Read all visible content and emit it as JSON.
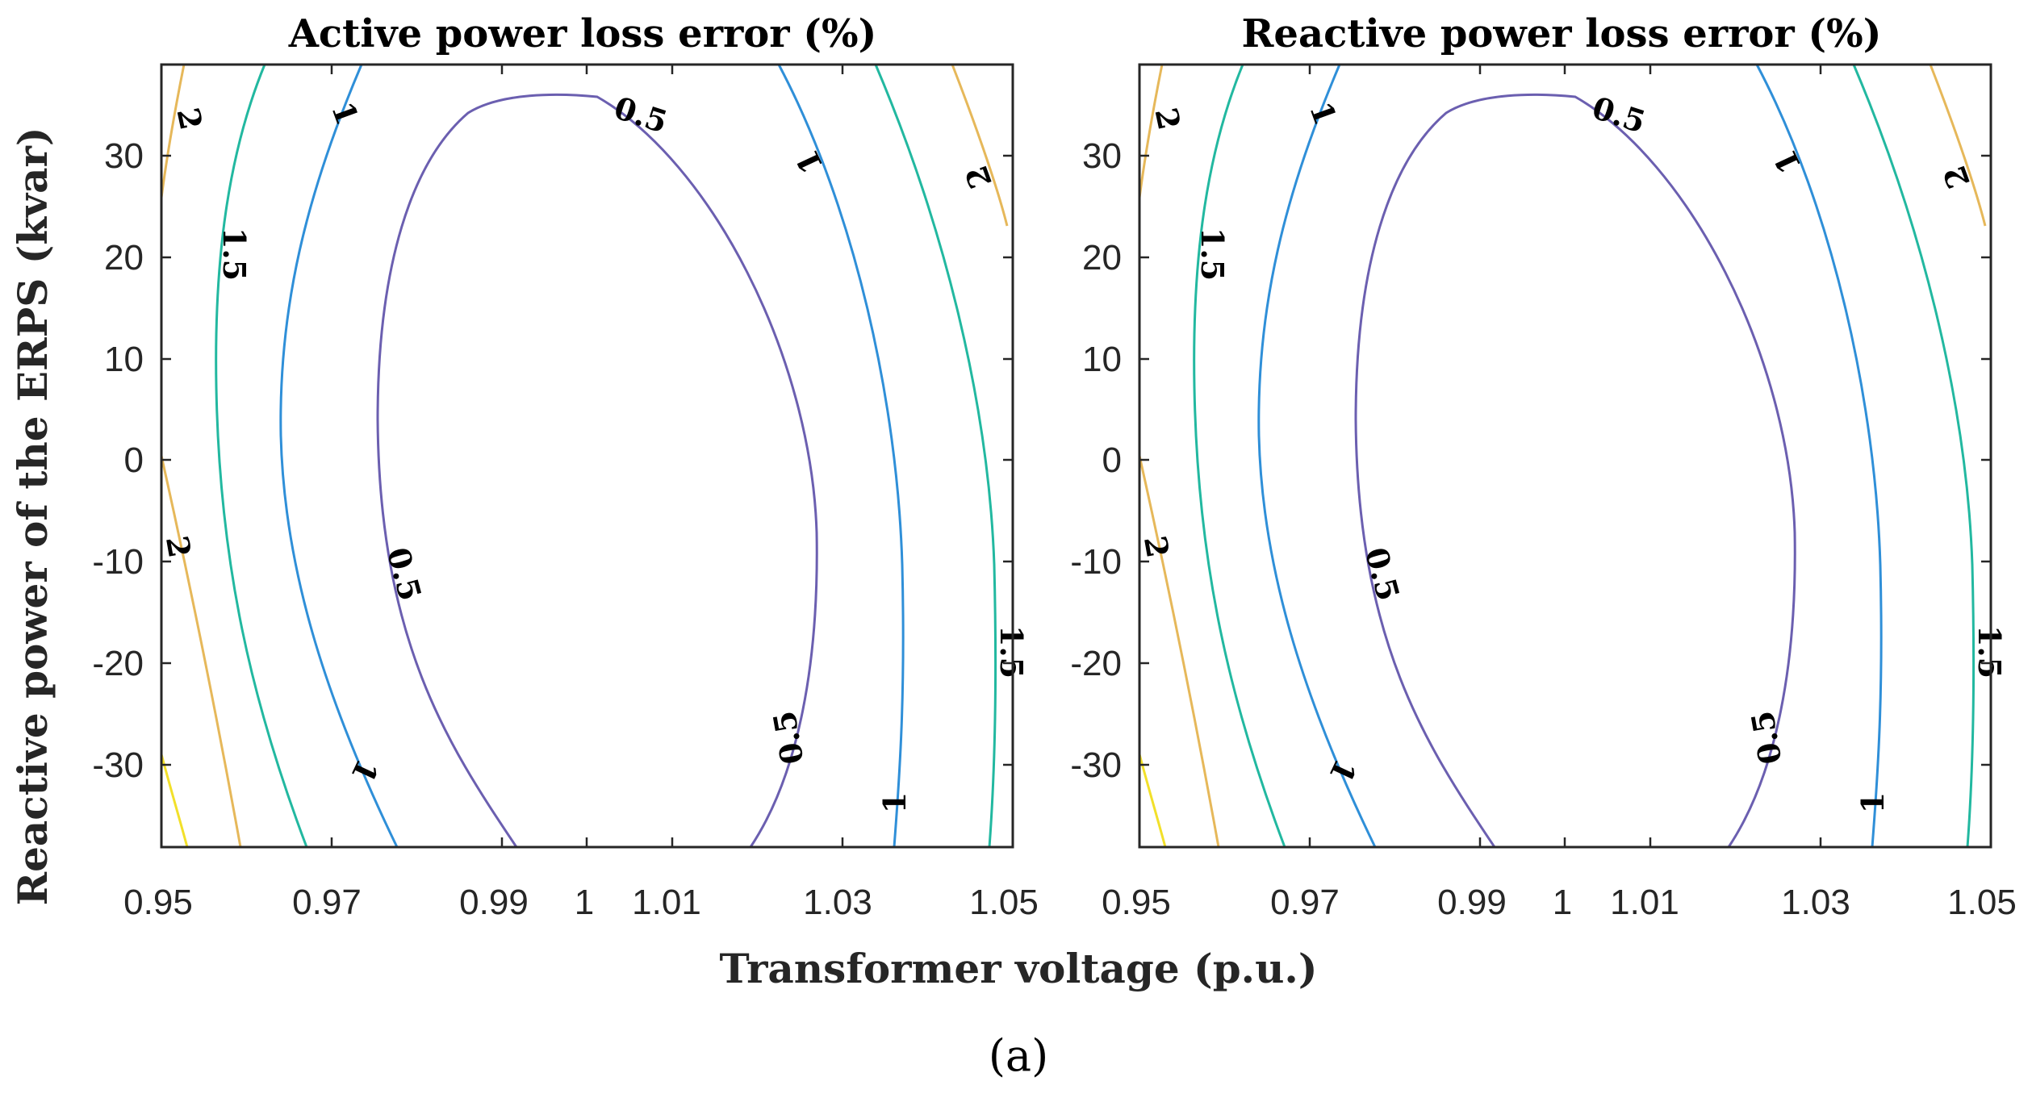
{
  "caption": "(a)",
  "chart_data": [
    {
      "type": "contour",
      "title": "Active power loss error (%)",
      "xlabel": "Transformer voltage (p.u.)",
      "ylabel": "Reactive power of the ERPS (kvar)",
      "xlim": [
        0.95,
        1.05
      ],
      "ylim": [
        -38.5,
        38.5
      ],
      "xticks": [
        0.95,
        0.97,
        0.99,
        1,
        1.01,
        1.03,
        1.05
      ],
      "xtick_labels": [
        "0.95",
        "0.97",
        "0.99",
        "1",
        "1.01",
        "1.03",
        "1.05"
      ],
      "yticks": [
        30,
        20,
        10,
        0,
        -10,
        -20,
        -30
      ],
      "ytick_labels": [
        "30",
        "20",
        "10",
        "0",
        "-10",
        "-20",
        "-30"
      ],
      "levels": [
        {
          "level": "0.5",
          "color": "#6b5fb0",
          "labels": [
            "0.5",
            "0.5",
            "0.5"
          ]
        },
        {
          "level": "1",
          "color": "#2f8fd8",
          "labels": [
            "1",
            "1",
            "1",
            "1"
          ]
        },
        {
          "level": "1.5",
          "color": "#22b8a0",
          "labels": [
            "1.5",
            "1.5"
          ]
        },
        {
          "level": "2",
          "color": "#e6b85a",
          "labels": [
            "2",
            "2",
            "2"
          ]
        },
        {
          "level": "2.5",
          "color": "#f2e02a",
          "labels": []
        }
      ]
    },
    {
      "type": "contour",
      "title": "Reactive power loss error (%)",
      "xlabel": "Transformer voltage (p.u.)",
      "ylabel": "",
      "xlim": [
        0.95,
        1.05
      ],
      "ylim": [
        -38.5,
        38.5
      ],
      "xticks": [
        0.95,
        0.97,
        0.99,
        1,
        1.01,
        1.03,
        1.05
      ],
      "xtick_labels": [
        "0.95",
        "0.97",
        "0.99",
        "1",
        "1.01",
        "1.03",
        "1.05"
      ],
      "yticks": [
        30,
        20,
        10,
        0,
        -10,
        -20,
        -30
      ],
      "ytick_labels": [
        "30",
        "20",
        "10",
        "0",
        "-10",
        "-20",
        "-30"
      ],
      "levels": [
        {
          "level": "0.5",
          "color": "#6b5fb0",
          "labels": [
            "0.5",
            "0.5",
            "0.5"
          ]
        },
        {
          "level": "1",
          "color": "#2f8fd8",
          "labels": [
            "1",
            "1",
            "1",
            "1"
          ]
        },
        {
          "level": "1.5",
          "color": "#22b8a0",
          "labels": [
            "1.5",
            "1.5"
          ]
        },
        {
          "level": "2",
          "color": "#e6b85a",
          "labels": [
            "2",
            "2",
            "2"
          ]
        },
        {
          "level": "2.5",
          "color": "#f2e02a",
          "labels": []
        }
      ]
    }
  ]
}
